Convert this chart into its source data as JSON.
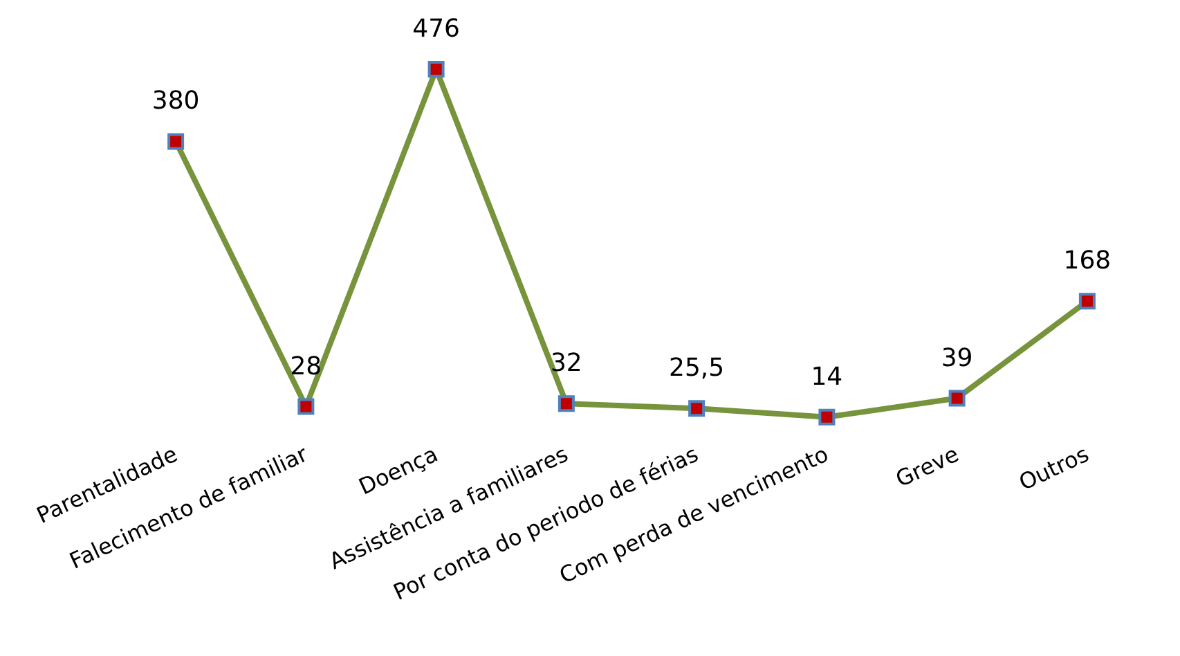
{
  "chart_data": {
    "type": "line",
    "categories": [
      "Parentalidade",
      "Falecimento de familiar",
      "Doença",
      "Assistência a familiares",
      "Por conta do periodo de férias",
      "Com perda de vencimento",
      "Greve",
      "Outros"
    ],
    "series": [
      {
        "color": "#77933c",
        "values": [
          380,
          28,
          476,
          32,
          25.5,
          14,
          39,
          168
        ],
        "value_labels": [
          "380",
          "28",
          "476",
          "32",
          "25,5",
          "14",
          "39",
          "168"
        ]
      }
    ],
    "marker": "square",
    "line_style": "solid",
    "tick_labels": "x"
  }
}
